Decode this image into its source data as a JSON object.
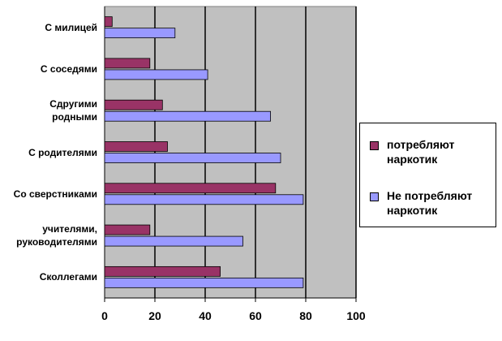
{
  "chart_data": {
    "type": "bar",
    "orientation": "horizontal",
    "categories": [
      "С милицей",
      "С соседями",
      "Сдругими родными",
      "С родителями",
      "Со сверстниками",
      "учителями, руководителями",
      "Сколлегами"
    ],
    "category_lines": [
      [
        "С милицей"
      ],
      [
        "С соседями"
      ],
      [
        "Сдругими",
        "родными"
      ],
      [
        "С родителями"
      ],
      [
        "Со сверстниками"
      ],
      [
        "учителями,",
        "руководителями"
      ],
      [
        "Сколлегами"
      ]
    ],
    "series": [
      {
        "name": "потребляют наркотик",
        "name_lines": [
          "потребляют",
          "наркотик"
        ],
        "color": "#993366",
        "values": [
          3,
          18,
          23,
          25,
          68,
          18,
          46
        ]
      },
      {
        "name": "Не потребляют наркотик",
        "name_lines": [
          "Не потребляют",
          "наркотик"
        ],
        "color": "#9999ff",
        "values": [
          28,
          41,
          66,
          70,
          79,
          55,
          79
        ]
      }
    ],
    "xlim": [
      0,
      100
    ],
    "xticks": [
      0,
      20,
      40,
      60,
      80,
      100
    ],
    "plot_background": "#c0c0c0",
    "gridlines": "vertical",
    "legend_position": "right"
  }
}
